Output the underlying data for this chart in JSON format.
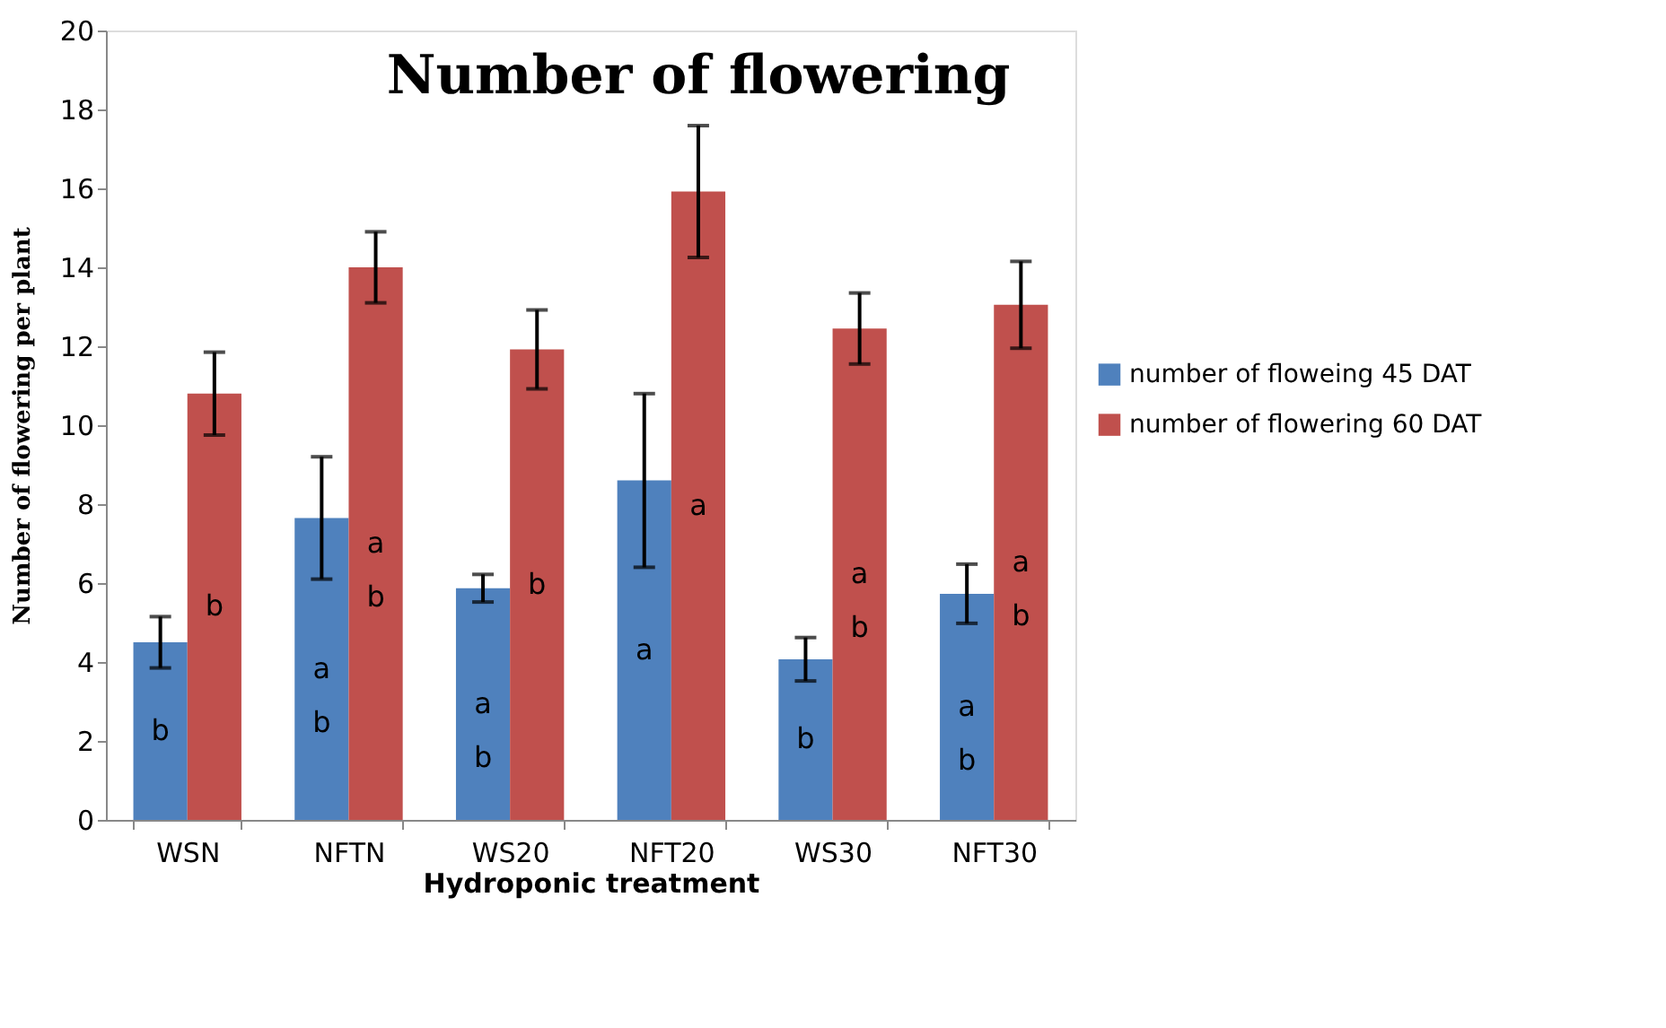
{
  "chart_data": {
    "type": "bar",
    "title": "Number of flowering",
    "xlabel": "Hydroponic treatment",
    "ylabel": "Number of flowering per plant",
    "categories": [
      "WSN",
      "NFTN",
      "WS20",
      "NFT20",
      "WS30",
      "NFT30"
    ],
    "series": [
      {
        "name": "number of floweing 45 DAT",
        "color": "#4f81bd",
        "values": [
          4.5,
          7.65,
          5.87,
          8.6,
          4.07,
          5.73
        ],
        "errors": [
          0.65,
          1.55,
          0.35,
          2.2,
          0.55,
          0.75
        ],
        "value_labels": [
          "b",
          "a\nb",
          "a\nb",
          "a",
          "b",
          "a\nb"
        ]
      },
      {
        "name": "number of flowering 60 DAT",
        "color": "#c0504d",
        "values": [
          10.8,
          14.0,
          11.92,
          15.92,
          12.45,
          13.05
        ],
        "errors": [
          1.05,
          0.9,
          1.0,
          1.67,
          0.9,
          1.1
        ],
        "value_labels": [
          "b",
          "a\nb",
          "b",
          "a",
          "a\nb",
          "a\nb"
        ]
      }
    ],
    "ylim": [
      0,
      20
    ],
    "yticks": [
      0,
      2,
      4,
      6,
      8,
      10,
      12,
      14,
      16,
      18,
      20
    ],
    "grid": false,
    "legend": "right"
  }
}
